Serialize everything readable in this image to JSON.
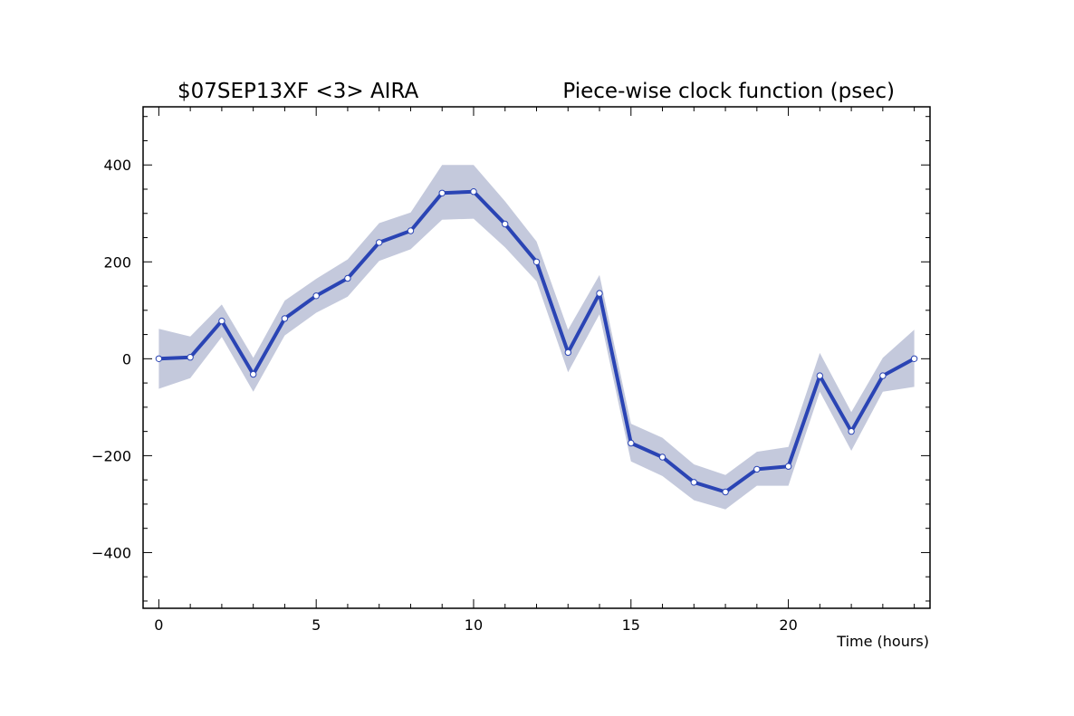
{
  "chart_data": {
    "type": "line",
    "title_left": "$07SEP13XF <3>  AIRA",
    "title_right": "Piece-wise clock function (psec)",
    "xlabel": "Time (hours)",
    "ylabel": "",
    "xlim": [
      -0.5,
      24.5
    ],
    "ylim": [
      -515,
      520
    ],
    "x_ticks": [
      0,
      5,
      10,
      15,
      20
    ],
    "y_ticks": [
      -400,
      -200,
      0,
      200,
      400
    ],
    "grid": false,
    "colors": {
      "line": "#2a44b4",
      "band": "#c4c9dc",
      "marker_fill": "#ffffff"
    },
    "series": [
      {
        "x": [
          0,
          1,
          2,
          3,
          4,
          5,
          6,
          7,
          8,
          9,
          10,
          11,
          12,
          13,
          14,
          15,
          16,
          17,
          18,
          19,
          20,
          21,
          22,
          23,
          24
        ],
        "values": [
          0,
          3,
          78,
          -32,
          83,
          130,
          166,
          240,
          264,
          342,
          345,
          278,
          200,
          13,
          135,
          -174,
          -203,
          -255,
          -275,
          -228,
          -222,
          -35,
          -150,
          -35,
          0
        ],
        "lower": [
          -62,
          -40,
          45,
          -68,
          48,
          95,
          128,
          202,
          226,
          287,
          289,
          230,
          160,
          -28,
          92,
          -212,
          -242,
          -292,
          -311,
          -262,
          -262,
          -68,
          -190,
          -68,
          -58
        ],
        "upper": [
          62,
          46,
          112,
          2,
          120,
          165,
          205,
          280,
          302,
          400,
          400,
          325,
          242,
          60,
          173,
          -134,
          -163,
          -218,
          -240,
          -192,
          -182,
          12,
          -110,
          2,
          60
        ]
      }
    ]
  }
}
